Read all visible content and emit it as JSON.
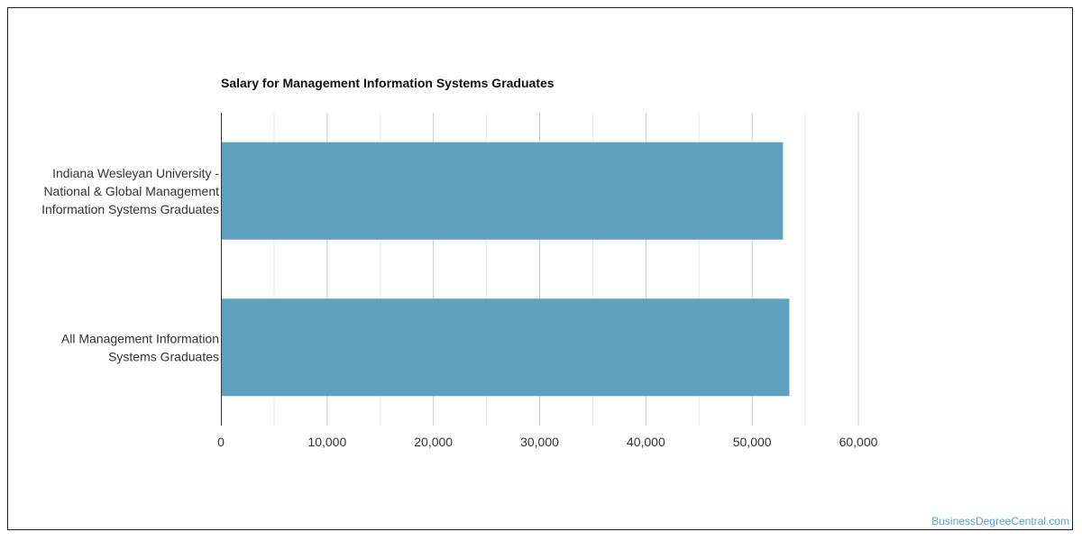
{
  "chart_data": {
    "type": "bar",
    "orientation": "horizontal",
    "title": "Salary for Management Information Systems Graduates",
    "categories": [
      "Indiana Wesleyan University - National & Global Management Information Systems Graduates",
      "All Management Information Systems Graduates"
    ],
    "category_label_lines": [
      [
        "Indiana Wesleyan University -",
        "National & Global Management",
        "Information Systems Graduates"
      ],
      [
        "All Management Information",
        "Systems Graduates"
      ]
    ],
    "values": [
      52900,
      53500
    ],
    "xlim": [
      0,
      60000
    ],
    "x_ticks": [
      0,
      10000,
      20000,
      30000,
      40000,
      50000,
      60000
    ],
    "x_tick_labels": [
      "0",
      "10,000",
      "20,000",
      "30,000",
      "40,000",
      "50,000",
      "60,000"
    ],
    "xlabel": "",
    "ylabel": "",
    "grid": true,
    "bar_color": "#5fa2bf"
  },
  "watermark": "BusinessDegreeCentral.com"
}
